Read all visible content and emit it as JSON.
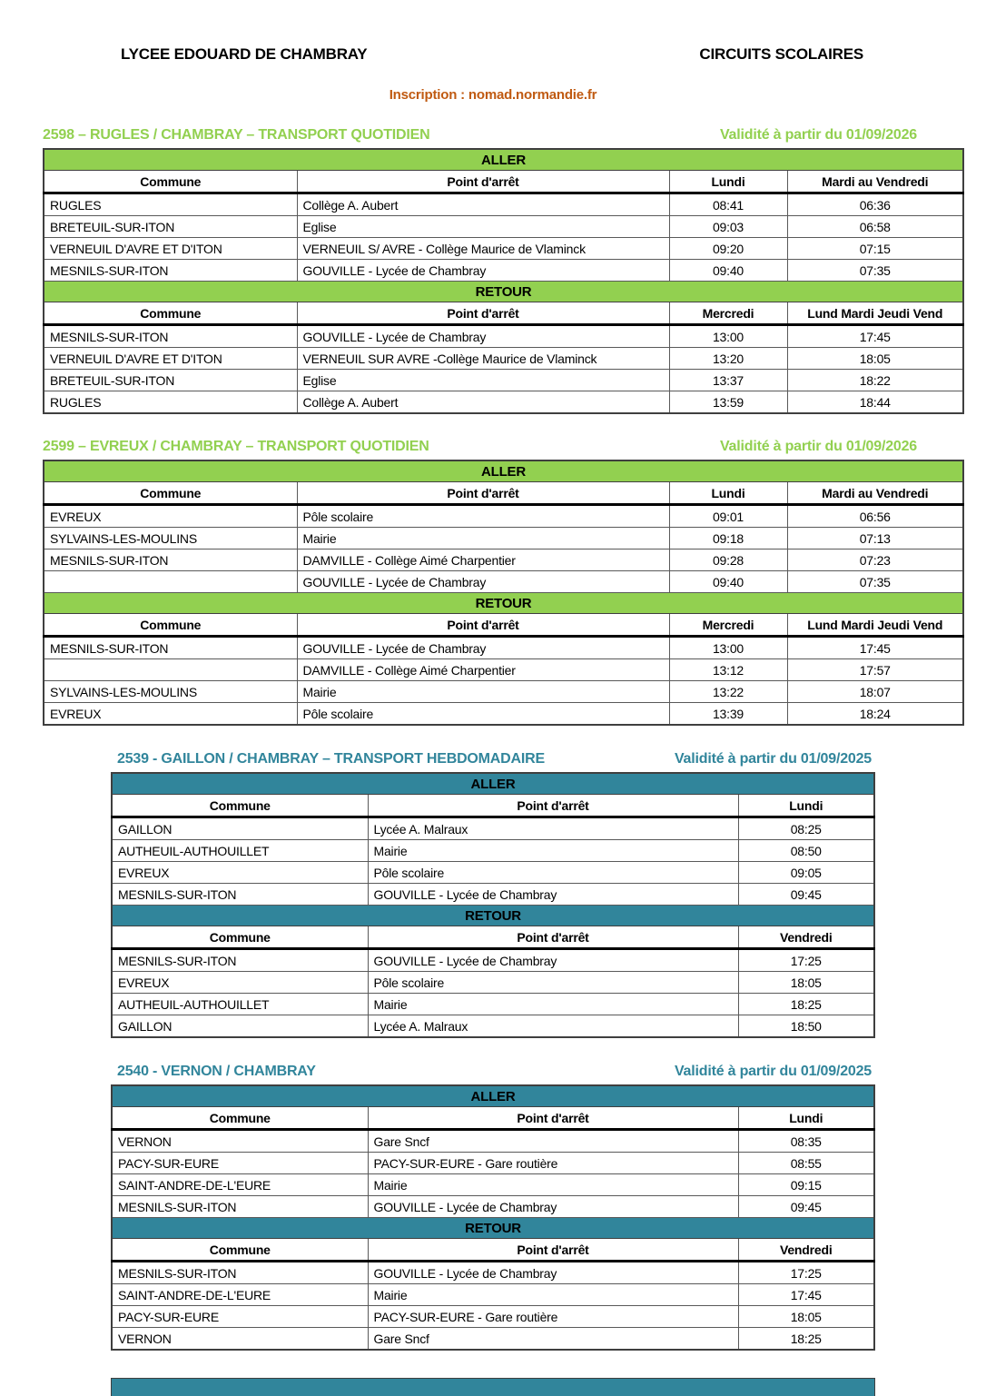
{
  "page": {
    "school": "LYCEE EDOUARD DE CHAMBRAY",
    "doc_title": "CIRCUITS SCOLAIRES",
    "inscription": "Inscription : nomad.normandie.fr",
    "bottom_partial_band": "start of next table header band, cut off by page edge"
  },
  "colors": {
    "green": "#92D050",
    "teal": "#31859B",
    "orange": "#C05A11",
    "border": "#595959"
  },
  "sections": [
    {
      "title": "2598 – RUGLES / CHAMBRAY – TRANSPORT QUOTIDIEN",
      "validity": "Validité à partir du 01/09/2026",
      "theme": "green",
      "layout": "full",
      "blocks": [
        {
          "direction": "ALLER",
          "columns": [
            "Commune",
            "Point d'arrêt",
            "Lundi",
            "Mardi au Vendredi"
          ],
          "rows": [
            [
              "RUGLES",
              "Collège A. Aubert",
              "08:41",
              "06:36"
            ],
            [
              "BRETEUIL-SUR-ITON",
              "Eglise",
              "09:03",
              "06:58"
            ],
            [
              "VERNEUIL D'AVRE ET D'ITON",
              "VERNEUIL S/ AVRE - Collège Maurice de Vlaminck",
              "09:20",
              "07:15"
            ],
            [
              "MESNILS-SUR-ITON",
              "GOUVILLE - Lycée de Chambray",
              "09:40",
              "07:35"
            ]
          ]
        },
        {
          "direction": "RETOUR",
          "columns": [
            "Commune",
            "Point d'arrêt",
            "Mercredi",
            "Lund Mardi Jeudi Vend"
          ],
          "rows": [
            [
              "MESNILS-SUR-ITON",
              "GOUVILLE - Lycée de Chambray",
              "13:00",
              "17:45"
            ],
            [
              "VERNEUIL D'AVRE ET D'ITON",
              "VERNEUIL SUR AVRE -Collège Maurice de Vlaminck",
              "13:20",
              "18:05"
            ],
            [
              "BRETEUIL-SUR-ITON",
              "Eglise",
              "13:37",
              "18:22"
            ],
            [
              "RUGLES",
              "Collège A. Aubert",
              "13:59",
              "18:44"
            ]
          ]
        }
      ]
    },
    {
      "title": "2599 – EVREUX / CHAMBRAY – TRANSPORT QUOTIDIEN",
      "validity": "Validité à partir du 01/09/2026",
      "theme": "green",
      "layout": "full",
      "blocks": [
        {
          "direction": "ALLER",
          "columns": [
            "Commune",
            "Point d'arrêt",
            "Lundi",
            "Mardi au Vendredi"
          ],
          "rows": [
            [
              "EVREUX",
              "Pôle scolaire",
              "09:01",
              "06:56"
            ],
            [
              "SYLVAINS-LES-MOULINS",
              "Mairie",
              "09:18",
              "07:13"
            ],
            [
              "MESNILS-SUR-ITON",
              "DAMVILLE - Collège Aimé Charpentier",
              "09:28",
              "07:23"
            ],
            [
              "",
              "GOUVILLE - Lycée de Chambray",
              "09:40",
              "07:35"
            ]
          ]
        },
        {
          "direction": "RETOUR",
          "columns": [
            "Commune",
            "Point d'arrêt",
            "Mercredi",
            "Lund Mardi Jeudi Vend"
          ],
          "rows": [
            [
              "MESNILS-SUR-ITON",
              "GOUVILLE - Lycée de Chambray",
              "13:00",
              "17:45"
            ],
            [
              "",
              "DAMVILLE - Collège Aimé Charpentier",
              "13:12",
              "17:57"
            ],
            [
              "SYLVAINS-LES-MOULINS",
              "Mairie",
              "13:22",
              "18:07"
            ],
            [
              "EVREUX",
              "Pôle scolaire",
              "13:39",
              "18:24"
            ]
          ]
        }
      ]
    },
    {
      "title": "2539 - GAILLON / CHAMBRAY – TRANSPORT HEBDOMADAIRE",
      "validity": "Validité à partir du 01/09/2025",
      "theme": "teal",
      "layout": "narrow",
      "blocks": [
        {
          "direction": "ALLER",
          "columns": [
            "Commune",
            "Point d'arrêt",
            "Lundi"
          ],
          "rows": [
            [
              "GAILLON",
              "Lycée A. Malraux",
              "08:25"
            ],
            [
              "AUTHEUIL-AUTHOUILLET",
              "Mairie",
              "08:50"
            ],
            [
              "EVREUX",
              "Pôle scolaire",
              "09:05"
            ],
            [
              "MESNILS-SUR-ITON",
              "GOUVILLE - Lycée de Chambray",
              "09:45"
            ]
          ]
        },
        {
          "direction": "RETOUR",
          "columns": [
            "Commune",
            "Point d'arrêt",
            "Vendredi"
          ],
          "rows": [
            [
              "MESNILS-SUR-ITON",
              "GOUVILLE - Lycée de Chambray",
              "17:25"
            ],
            [
              "EVREUX",
              "Pôle scolaire",
              "18:05"
            ],
            [
              "AUTHEUIL-AUTHOUILLET",
              "Mairie",
              "18:25"
            ],
            [
              "GAILLON",
              "Lycée A. Malraux",
              "18:50"
            ]
          ]
        }
      ]
    },
    {
      "title": "2540 - VERNON / CHAMBRAY",
      "validity": "Validité à partir du 01/09/2025",
      "theme": "teal",
      "layout": "narrow",
      "blocks": [
        {
          "direction": "ALLER",
          "columns": [
            "Commune",
            "Point d'arrêt",
            "Lundi"
          ],
          "rows": [
            [
              "VERNON",
              "Gare Sncf",
              "08:35"
            ],
            [
              "PACY-SUR-EURE",
              "PACY-SUR-EURE - Gare routière",
              "08:55"
            ],
            [
              "SAINT-ANDRE-DE-L'EURE",
              "Mairie",
              "09:15"
            ],
            [
              "MESNILS-SUR-ITON",
              "GOUVILLE - Lycée de Chambray",
              "09:45"
            ]
          ]
        },
        {
          "direction": "RETOUR",
          "columns": [
            "Commune",
            "Point d'arrêt",
            "Vendredi"
          ],
          "rows": [
            [
              "MESNILS-SUR-ITON",
              "GOUVILLE - Lycée de Chambray",
              "17:25"
            ],
            [
              "SAINT-ANDRE-DE-L'EURE",
              "Mairie",
              "17:45"
            ],
            [
              "PACY-SUR-EURE",
              "PACY-SUR-EURE - Gare routière",
              "18:05"
            ],
            [
              "VERNON",
              "Gare Sncf",
              "18:25"
            ]
          ]
        }
      ]
    }
  ]
}
